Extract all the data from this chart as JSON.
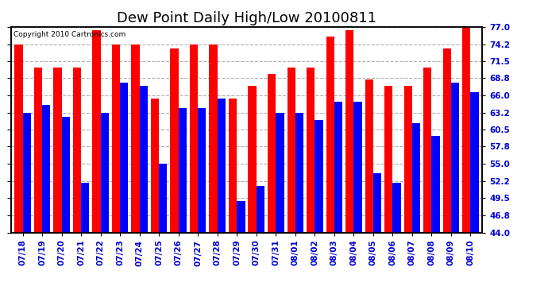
{
  "title": "Dew Point Daily High/Low 20100811",
  "copyright": "Copyright 2010 Cartronics.com",
  "dates": [
    "07/18",
    "07/19",
    "07/20",
    "07/21",
    "07/22",
    "07/23",
    "07/24",
    "07/25",
    "07/26",
    "07/27",
    "07/28",
    "07/29",
    "07/30",
    "07/31",
    "08/01",
    "08/02",
    "08/03",
    "08/04",
    "08/05",
    "08/06",
    "08/07",
    "08/08",
    "08/09",
    "08/10"
  ],
  "highs": [
    74.2,
    70.5,
    70.5,
    70.5,
    76.5,
    74.2,
    74.2,
    65.5,
    73.5,
    74.2,
    74.2,
    65.5,
    67.5,
    69.5,
    70.5,
    70.5,
    75.5,
    76.5,
    68.5,
    67.5,
    67.5,
    70.5,
    73.5,
    77.0
  ],
  "lows": [
    63.2,
    64.5,
    62.5,
    52.0,
    63.2,
    68.0,
    67.5,
    55.0,
    64.0,
    64.0,
    65.5,
    49.0,
    51.5,
    63.2,
    63.2,
    62.0,
    65.0,
    65.0,
    53.5,
    52.0,
    61.5,
    59.5,
    68.0,
    66.5
  ],
  "ylim": [
    44.0,
    77.0
  ],
  "yticks": [
    44.0,
    46.8,
    49.5,
    52.2,
    55.0,
    57.8,
    60.5,
    63.2,
    66.0,
    68.8,
    71.5,
    74.2,
    77.0
  ],
  "bar_color_high": "#ff0000",
  "bar_color_low": "#0000ff",
  "background_color": "#ffffff",
  "plot_bg_color": "#ffffff",
  "grid_color": "#b0b0b0",
  "title_fontsize": 13,
  "tick_fontsize": 7.5,
  "ylabel_right_color": "#0000cc"
}
